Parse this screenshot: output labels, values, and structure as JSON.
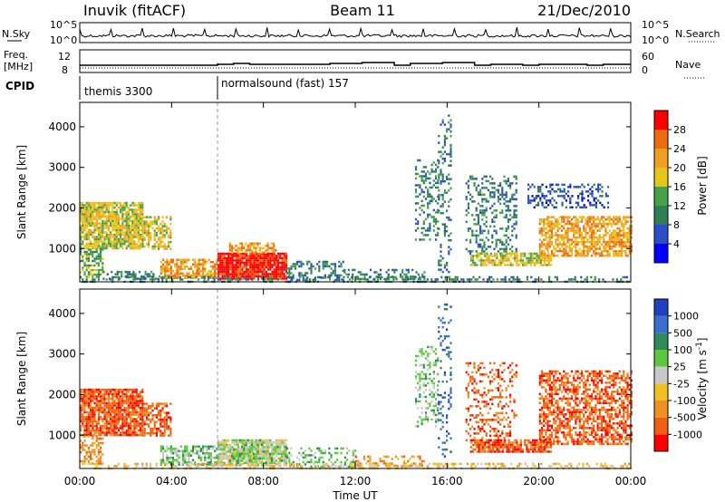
{
  "header": {
    "station": "Inuvik (fitACF)",
    "beam": "Beam 11",
    "date": "21/Dec/2010"
  },
  "noise_panel": {
    "left_label": "N.Sky",
    "right_label": "N.Search",
    "left_ticks": [
      "10^5",
      "10^0"
    ],
    "right_ticks": [
      "10^5",
      "10^0"
    ]
  },
  "freq_panel": {
    "left_label_1": "Freq.",
    "left_label_2": "[MHz]",
    "left_ticks": [
      "12",
      "8"
    ],
    "right_label": "Nave",
    "right_ticks": [
      "60",
      "0"
    ]
  },
  "cpid": {
    "label": "CPID",
    "programs": [
      {
        "name": "themis 3300",
        "start_hour": 0,
        "end_hour": 6
      },
      {
        "name": "normalsound (fast) 157",
        "start_hour": 6,
        "end_hour": 24
      }
    ]
  },
  "chart_data": [
    {
      "type": "heatmap",
      "title": "",
      "ylabel": "Slant Range [km]",
      "xlabel": "",
      "x_ticks": [
        "00:00",
        "04:00",
        "08:00",
        "12:00",
        "16:00",
        "20:00",
        "00:00"
      ],
      "xlim_hours": [
        0,
        24
      ],
      "ylim": [
        180,
        4600
      ],
      "y_ticks": [
        1000,
        2000,
        3000,
        4000
      ],
      "colorbar": {
        "label": "Power [dB]",
        "ticks": [
          "4",
          "8",
          "12",
          "16",
          "20",
          "24",
          "28"
        ],
        "colors": [
          "#0000ff",
          "#2a4ec8",
          "#2f7f55",
          "#46a24a",
          "#e8c617",
          "#f0a020",
          "#f06a10",
          "#ff0000"
        ]
      },
      "regions": [
        {
          "h0": 0.0,
          "h1": 2.7,
          "r0": 1000,
          "r1": 2150,
          "level": 4,
          "density": 0.85
        },
        {
          "h0": 0.0,
          "h1": 1.0,
          "r0": 300,
          "r1": 1000,
          "level": 3,
          "density": 0.6
        },
        {
          "h0": 1.0,
          "h1": 3.5,
          "r0": 250,
          "r1": 450,
          "level": 2,
          "density": 0.45
        },
        {
          "h0": 2.7,
          "h1": 4.0,
          "r0": 1000,
          "r1": 1800,
          "level": 4,
          "density": 0.6
        },
        {
          "h0": 3.5,
          "h1": 6.0,
          "r0": 250,
          "r1": 750,
          "level": 5,
          "density": 0.75
        },
        {
          "h0": 6.0,
          "h1": 9.0,
          "r0": 250,
          "r1": 900,
          "level": 7,
          "density": 0.95
        },
        {
          "h0": 6.5,
          "h1": 8.5,
          "r0": 900,
          "r1": 1150,
          "level": 5,
          "density": 0.55
        },
        {
          "h0": 9.0,
          "h1": 11.5,
          "r0": 250,
          "r1": 700,
          "level": 2,
          "density": 0.35
        },
        {
          "h0": 11.5,
          "h1": 15.0,
          "r0": 250,
          "r1": 500,
          "level": 2,
          "density": 0.3
        },
        {
          "h0": 14.6,
          "h1": 15.6,
          "r0": 1200,
          "r1": 3200,
          "level": 2,
          "density": 0.35
        },
        {
          "h0": 15.6,
          "h1": 16.2,
          "r0": 400,
          "r1": 4300,
          "level": 2,
          "density": 0.25
        },
        {
          "h0": 16.8,
          "h1": 19.0,
          "r0": 900,
          "r1": 2800,
          "level": 2,
          "density": 0.3
        },
        {
          "h0": 17.0,
          "h1": 20.5,
          "r0": 600,
          "r1": 900,
          "level": 4,
          "density": 0.7
        },
        {
          "h0": 20.0,
          "h1": 24.0,
          "r0": 800,
          "r1": 1800,
          "level": 5,
          "density": 0.7
        },
        {
          "h0": 19.5,
          "h1": 23.0,
          "r0": 2000,
          "r1": 2600,
          "level": 1,
          "density": 0.35
        },
        {
          "h0": 0.0,
          "h1": 24.0,
          "r0": 200,
          "r1": 320,
          "level": 2,
          "density": 0.35
        }
      ]
    },
    {
      "type": "heatmap",
      "title": "",
      "ylabel": "Slant Range [km]",
      "xlabel": "Time UT",
      "x_ticks": [
        "00:00",
        "04:00",
        "08:00",
        "12:00",
        "16:00",
        "20:00",
        "00:00"
      ],
      "xlim_hours": [
        0,
        24
      ],
      "ylim": [
        180,
        4600
      ],
      "y_ticks": [
        1000,
        2000,
        3000,
        4000
      ],
      "colorbar": {
        "label": "Velocity [m s^-1]",
        "ticks": [
          "1000",
          "500",
          "100",
          "25",
          "-25",
          "-100",
          "-500",
          "-1000"
        ],
        "colors": [
          "#2040c0",
          "#3a6fd0",
          "#2e8b57",
          "#5cc840",
          "#c8c8c8",
          "#f0c020",
          "#f09020",
          "#f06010",
          "#ff0000"
        ]
      },
      "regions": [
        {
          "h0": 0.0,
          "h1": 2.7,
          "r0": 1000,
          "r1": 2150,
          "level": 7,
          "density": 0.85
        },
        {
          "h0": 0.0,
          "h1": 1.0,
          "r0": 300,
          "r1": 1000,
          "level": 6,
          "density": 0.5
        },
        {
          "h0": 2.7,
          "h1": 4.0,
          "r0": 1000,
          "r1": 1800,
          "level": 7,
          "density": 0.55
        },
        {
          "h0": 3.5,
          "h1": 6.0,
          "r0": 250,
          "r1": 750,
          "level": 3,
          "density": 0.6
        },
        {
          "h0": 6.0,
          "h1": 9.0,
          "r0": 250,
          "r1": 900,
          "level": 4,
          "density": 0.85
        },
        {
          "h0": 6.5,
          "h1": 9.0,
          "r0": 300,
          "r1": 900,
          "level": 3,
          "density": 0.35
        },
        {
          "h0": 9.0,
          "h1": 12.0,
          "r0": 250,
          "r1": 700,
          "level": 3,
          "density": 0.3
        },
        {
          "h0": 12.0,
          "h1": 15.0,
          "r0": 250,
          "r1": 500,
          "level": 6,
          "density": 0.3
        },
        {
          "h0": 14.6,
          "h1": 15.6,
          "r0": 1200,
          "r1": 3200,
          "level": 3,
          "density": 0.35
        },
        {
          "h0": 15.6,
          "h1": 16.2,
          "r0": 400,
          "r1": 4300,
          "level": 1,
          "density": 0.2
        },
        {
          "h0": 16.8,
          "h1": 19.0,
          "r0": 900,
          "r1": 2800,
          "level": 7,
          "density": 0.25
        },
        {
          "h0": 17.0,
          "h1": 20.5,
          "r0": 600,
          "r1": 900,
          "level": 7,
          "density": 0.75
        },
        {
          "h0": 20.0,
          "h1": 24.0,
          "r0": 800,
          "r1": 2600,
          "level": 7,
          "density": 0.6
        },
        {
          "h0": 0.0,
          "h1": 24.0,
          "r0": 200,
          "r1": 320,
          "level": 5,
          "density": 0.35
        }
      ]
    }
  ]
}
